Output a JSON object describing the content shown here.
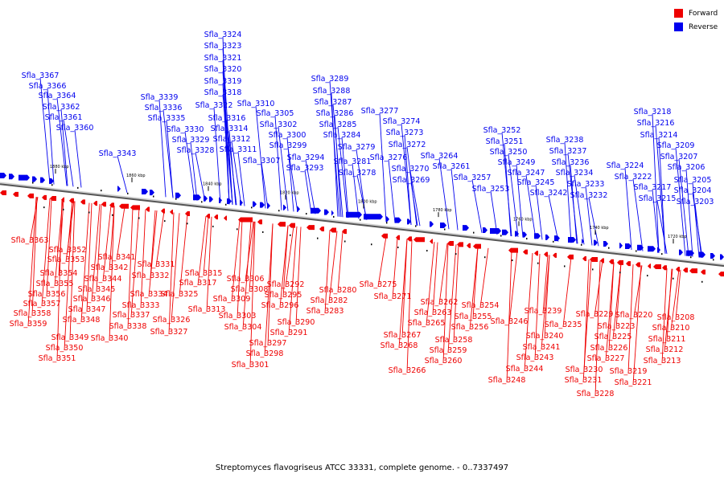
{
  "legend": {
    "forward": {
      "label": "Forward",
      "color": "#ee0000"
    },
    "reverse": {
      "label": "Reverse",
      "color": "#0000ee"
    }
  },
  "caption": "Streptomyces flavogriseus ATCC 33331, complete genome. - 0..7337497",
  "ruler_ticks": [
    "1880 kbp",
    "1860 kbp",
    "1840 kbp",
    "1820 kbp",
    "1800 kbp",
    "1780 kbp",
    "1760 kbp",
    "1740 kbp",
    "1720 kbp"
  ],
  "reverse_labels": [
    "Sfla_3367",
    "Sfla_3366",
    "Sfla_3364",
    "Sfla_3362",
    "Sfla_3361",
    "Sfla_3360",
    "Sfla_3343",
    "Sfla_3339",
    "Sfla_3336",
    "Sfla_3335",
    "Sfla_3330",
    "Sfla_3329",
    "Sfla_3328",
    "Sfla_3324",
    "Sfla_3323",
    "Sfla_3321",
    "Sfla_3320",
    "Sfla_3319",
    "Sfla_3318",
    "Sfla_3322",
    "Sfla_3316",
    "Sfla_3314",
    "Sfla_3312",
    "Sfla_3311",
    "Sfla_3310",
    "Sfla_3305",
    "Sfla_3302",
    "Sfla_3300",
    "Sfla_3299",
    "Sfla_3307",
    "Sfla_3294",
    "Sfla_3293",
    "Sfla_3289",
    "Sfla_3288",
    "Sfla_3287",
    "Sfla_3286",
    "Sfla_3285",
    "Sfla_3284",
    "Sfla_3279",
    "Sfla_3281",
    "Sfla_3278",
    "Sfla_3277",
    "Sfla_3274",
    "Sfla_3273",
    "Sfla_3272",
    "Sfla_3276",
    "Sfla_3270",
    "Sfla_3269",
    "Sfla_3264",
    "Sfla_3261",
    "Sfla_3257",
    "Sfla_3253",
    "Sfla_3252",
    "Sfla_3251",
    "Sfla_3250",
    "Sfla_3249",
    "Sfla_3247",
    "Sfla_3245",
    "Sfla_3242",
    "Sfla_3238",
    "Sfla_3237",
    "Sfla_3236",
    "Sfla_3234",
    "Sfla_3233",
    "Sfla_3232",
    "Sfla_3224",
    "Sfla_3222",
    "Sfla_3218",
    "Sfla_3216",
    "Sfla_3214",
    "Sfla_3209",
    "Sfla_3217",
    "Sfla_3207",
    "Sfla_3206",
    "Sfla_3215",
    "Sfla_3205",
    "Sfla_3204",
    "Sfla_3203"
  ],
  "forward_labels": [
    "Sfla_3363",
    "Sfla_3352",
    "Sfla_3353",
    "Sfla_3354",
    "Sfla_3355",
    "Sfla_3356",
    "Sfla_3357",
    "Sfla_3358",
    "Sfla_3359",
    "Sfla_3349",
    "Sfla_3350",
    "Sfla_3351",
    "Sfla_3341",
    "Sfla_3342",
    "Sfla_3344",
    "Sfla_3345",
    "Sfla_3346",
    "Sfla_3347",
    "Sfla_3348",
    "Sfla_3340",
    "Sfla_3331",
    "Sfla_3332",
    "Sfla_3334",
    "Sfla_3333",
    "Sfla_3337",
    "Sfla_3338",
    "Sfla_3326",
    "Sfla_3327",
    "Sfla_3325",
    "Sfla_3315",
    "Sfla_3317",
    "Sfla_3313",
    "Sfla_3306",
    "Sfla_3308",
    "Sfla_3309",
    "Sfla_3303",
    "Sfla_3304",
    "Sfla_3297",
    "Sfla_3298",
    "Sfla_3301",
    "Sfla_3292",
    "Sfla_3295",
    "Sfla_3296",
    "Sfla_3290",
    "Sfla_3291",
    "Sfla_3280",
    "Sfla_3282",
    "Sfla_3283",
    "Sfla_3275",
    "Sfla_3271",
    "Sfla_3262",
    "Sfla_3263",
    "Sfla_3265",
    "Sfla_3267",
    "Sfla_3268",
    "Sfla_3266",
    "Sfla_3254",
    "Sfla_3255",
    "Sfla_3256",
    "Sfla_3258",
    "Sfla_3259",
    "Sfla_3260",
    "Sfla_3246",
    "Sfla_3239",
    "Sfla_3235",
    "Sfla_3240",
    "Sfla_3241",
    "Sfla_3243",
    "Sfla_3244",
    "Sfla_3248",
    "Sfla_3229",
    "Sfla_3223",
    "Sfla_3225",
    "Sfla_3226",
    "Sfla_3227",
    "Sfla_3230",
    "Sfla_3231",
    "Sfla_3228",
    "Sfla_3220",
    "Sfla_3219",
    "Sfla_3221",
    "Sfla_3208",
    "Sfla_3210",
    "Sfla_3211",
    "Sfla_3212",
    "Sfla_3213"
  ]
}
